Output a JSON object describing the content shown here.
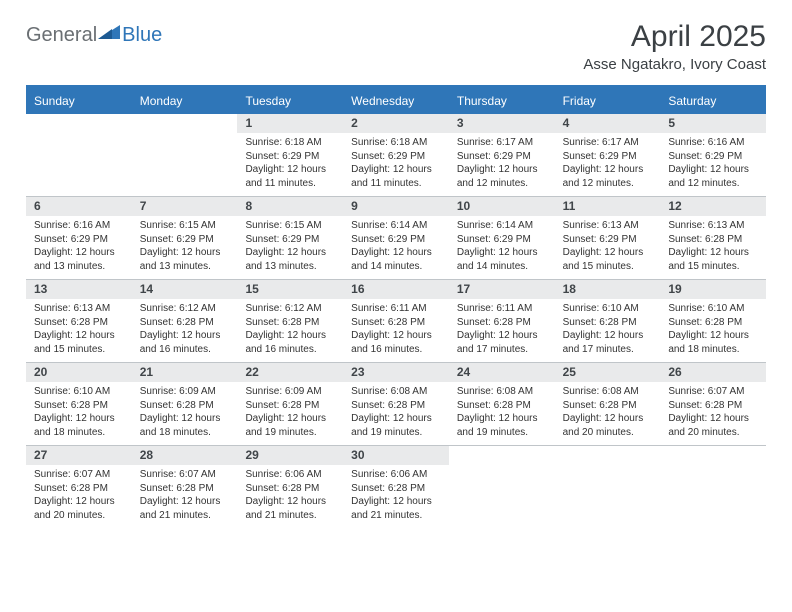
{
  "brand": {
    "part1": "General",
    "part2": "Blue"
  },
  "title": "April 2025",
  "location": "Asse Ngatakro, Ivory Coast",
  "colors": {
    "accent": "#2f76b8",
    "dayBarBg": "#e9eaeb",
    "text": "#333333",
    "ruleColor": "#c0c5c9"
  },
  "dow": [
    "Sunday",
    "Monday",
    "Tuesday",
    "Wednesday",
    "Thursday",
    "Friday",
    "Saturday"
  ],
  "weeks": [
    [
      null,
      null,
      {
        "n": "1",
        "sr": "Sunrise: 6:18 AM",
        "ss": "Sunset: 6:29 PM",
        "d1": "Daylight: 12 hours",
        "d2": "and 11 minutes."
      },
      {
        "n": "2",
        "sr": "Sunrise: 6:18 AM",
        "ss": "Sunset: 6:29 PM",
        "d1": "Daylight: 12 hours",
        "d2": "and 11 minutes."
      },
      {
        "n": "3",
        "sr": "Sunrise: 6:17 AM",
        "ss": "Sunset: 6:29 PM",
        "d1": "Daylight: 12 hours",
        "d2": "and 12 minutes."
      },
      {
        "n": "4",
        "sr": "Sunrise: 6:17 AM",
        "ss": "Sunset: 6:29 PM",
        "d1": "Daylight: 12 hours",
        "d2": "and 12 minutes."
      },
      {
        "n": "5",
        "sr": "Sunrise: 6:16 AM",
        "ss": "Sunset: 6:29 PM",
        "d1": "Daylight: 12 hours",
        "d2": "and 12 minutes."
      }
    ],
    [
      {
        "n": "6",
        "sr": "Sunrise: 6:16 AM",
        "ss": "Sunset: 6:29 PM",
        "d1": "Daylight: 12 hours",
        "d2": "and 13 minutes."
      },
      {
        "n": "7",
        "sr": "Sunrise: 6:15 AM",
        "ss": "Sunset: 6:29 PM",
        "d1": "Daylight: 12 hours",
        "d2": "and 13 minutes."
      },
      {
        "n": "8",
        "sr": "Sunrise: 6:15 AM",
        "ss": "Sunset: 6:29 PM",
        "d1": "Daylight: 12 hours",
        "d2": "and 13 minutes."
      },
      {
        "n": "9",
        "sr": "Sunrise: 6:14 AM",
        "ss": "Sunset: 6:29 PM",
        "d1": "Daylight: 12 hours",
        "d2": "and 14 minutes."
      },
      {
        "n": "10",
        "sr": "Sunrise: 6:14 AM",
        "ss": "Sunset: 6:29 PM",
        "d1": "Daylight: 12 hours",
        "d2": "and 14 minutes."
      },
      {
        "n": "11",
        "sr": "Sunrise: 6:13 AM",
        "ss": "Sunset: 6:29 PM",
        "d1": "Daylight: 12 hours",
        "d2": "and 15 minutes."
      },
      {
        "n": "12",
        "sr": "Sunrise: 6:13 AM",
        "ss": "Sunset: 6:28 PM",
        "d1": "Daylight: 12 hours",
        "d2": "and 15 minutes."
      }
    ],
    [
      {
        "n": "13",
        "sr": "Sunrise: 6:13 AM",
        "ss": "Sunset: 6:28 PM",
        "d1": "Daylight: 12 hours",
        "d2": "and 15 minutes."
      },
      {
        "n": "14",
        "sr": "Sunrise: 6:12 AM",
        "ss": "Sunset: 6:28 PM",
        "d1": "Daylight: 12 hours",
        "d2": "and 16 minutes."
      },
      {
        "n": "15",
        "sr": "Sunrise: 6:12 AM",
        "ss": "Sunset: 6:28 PM",
        "d1": "Daylight: 12 hours",
        "d2": "and 16 minutes."
      },
      {
        "n": "16",
        "sr": "Sunrise: 6:11 AM",
        "ss": "Sunset: 6:28 PM",
        "d1": "Daylight: 12 hours",
        "d2": "and 16 minutes."
      },
      {
        "n": "17",
        "sr": "Sunrise: 6:11 AM",
        "ss": "Sunset: 6:28 PM",
        "d1": "Daylight: 12 hours",
        "d2": "and 17 minutes."
      },
      {
        "n": "18",
        "sr": "Sunrise: 6:10 AM",
        "ss": "Sunset: 6:28 PM",
        "d1": "Daylight: 12 hours",
        "d2": "and 17 minutes."
      },
      {
        "n": "19",
        "sr": "Sunrise: 6:10 AM",
        "ss": "Sunset: 6:28 PM",
        "d1": "Daylight: 12 hours",
        "d2": "and 18 minutes."
      }
    ],
    [
      {
        "n": "20",
        "sr": "Sunrise: 6:10 AM",
        "ss": "Sunset: 6:28 PM",
        "d1": "Daylight: 12 hours",
        "d2": "and 18 minutes."
      },
      {
        "n": "21",
        "sr": "Sunrise: 6:09 AM",
        "ss": "Sunset: 6:28 PM",
        "d1": "Daylight: 12 hours",
        "d2": "and 18 minutes."
      },
      {
        "n": "22",
        "sr": "Sunrise: 6:09 AM",
        "ss": "Sunset: 6:28 PM",
        "d1": "Daylight: 12 hours",
        "d2": "and 19 minutes."
      },
      {
        "n": "23",
        "sr": "Sunrise: 6:08 AM",
        "ss": "Sunset: 6:28 PM",
        "d1": "Daylight: 12 hours",
        "d2": "and 19 minutes."
      },
      {
        "n": "24",
        "sr": "Sunrise: 6:08 AM",
        "ss": "Sunset: 6:28 PM",
        "d1": "Daylight: 12 hours",
        "d2": "and 19 minutes."
      },
      {
        "n": "25",
        "sr": "Sunrise: 6:08 AM",
        "ss": "Sunset: 6:28 PM",
        "d1": "Daylight: 12 hours",
        "d2": "and 20 minutes."
      },
      {
        "n": "26",
        "sr": "Sunrise: 6:07 AM",
        "ss": "Sunset: 6:28 PM",
        "d1": "Daylight: 12 hours",
        "d2": "and 20 minutes."
      }
    ],
    [
      {
        "n": "27",
        "sr": "Sunrise: 6:07 AM",
        "ss": "Sunset: 6:28 PM",
        "d1": "Daylight: 12 hours",
        "d2": "and 20 minutes."
      },
      {
        "n": "28",
        "sr": "Sunrise: 6:07 AM",
        "ss": "Sunset: 6:28 PM",
        "d1": "Daylight: 12 hours",
        "d2": "and 21 minutes."
      },
      {
        "n": "29",
        "sr": "Sunrise: 6:06 AM",
        "ss": "Sunset: 6:28 PM",
        "d1": "Daylight: 12 hours",
        "d2": "and 21 minutes."
      },
      {
        "n": "30",
        "sr": "Sunrise: 6:06 AM",
        "ss": "Sunset: 6:28 PM",
        "d1": "Daylight: 12 hours",
        "d2": "and 21 minutes."
      },
      null,
      null,
      null
    ]
  ]
}
